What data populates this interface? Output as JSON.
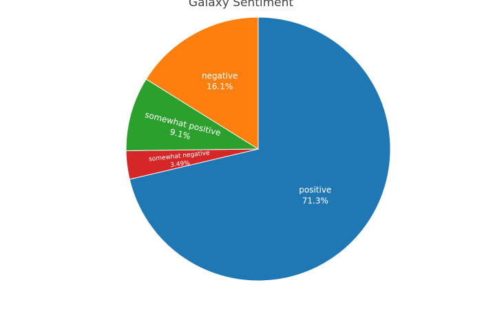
{
  "chart_data": {
    "type": "pie",
    "title": "Galaxy Sentiment",
    "direction": "clockwise",
    "start_angle_deg": 0,
    "slices": [
      {
        "label": "positive",
        "percent_text": "71.3%",
        "value": 71.3,
        "color": "#1f77b4"
      },
      {
        "label": "somewhat negative",
        "percent_text": "3.49%",
        "value": 3.49,
        "color": "#d62728"
      },
      {
        "label": "somewhat positive",
        "percent_text": "9.1%",
        "value": 9.1,
        "color": "#2ca02c"
      },
      {
        "label": "negative",
        "percent_text": "16.1%",
        "value": 16.1,
        "color": "#ff7f0e"
      }
    ]
  }
}
